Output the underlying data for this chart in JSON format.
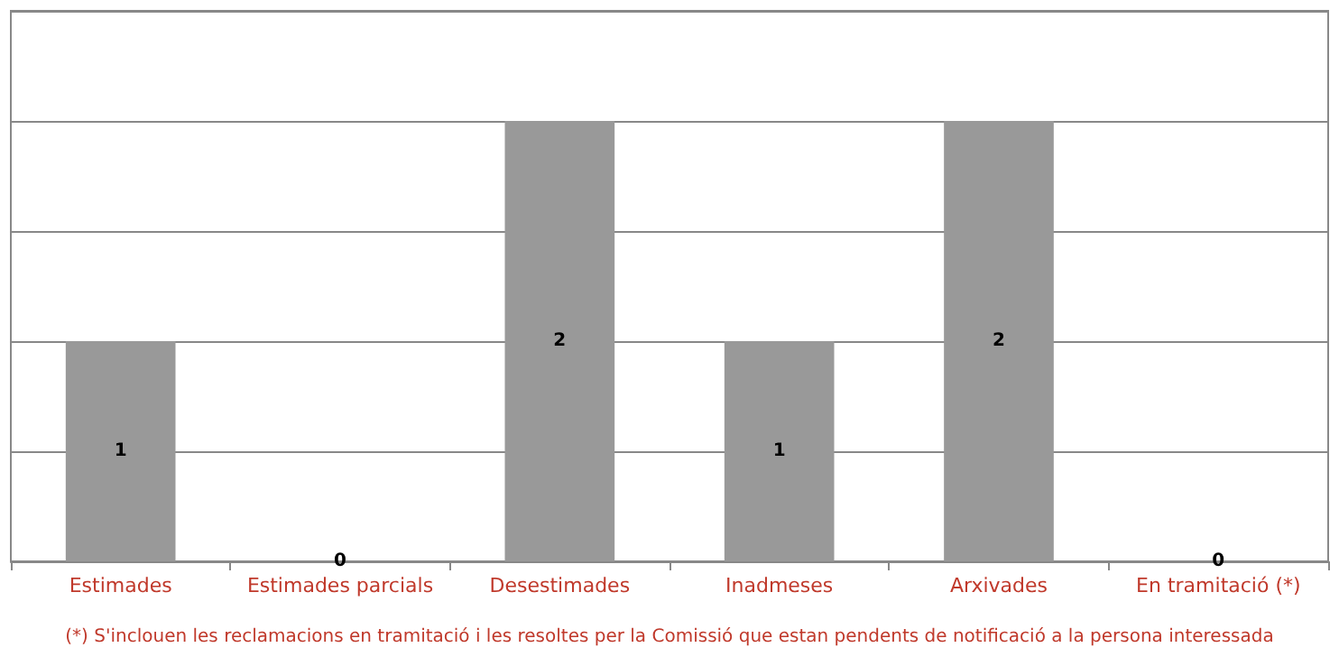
{
  "chart_data": {
    "type": "bar",
    "categories": [
      "Estimades",
      "Estimades parcials",
      "Desestimades",
      "Inadmeses",
      "Arxivades",
      "En tramitació (*)"
    ],
    "values": [
      1,
      0,
      2,
      1,
      2,
      0
    ],
    "color": "#999999",
    "ylim": [
      0,
      2.5
    ],
    "yticks": [
      {
        "value": 0,
        "label": null
      },
      {
        "value": 0.5,
        "label": null
      },
      {
        "value": 1,
        "label": null
      },
      {
        "value": 1.5,
        "label": null
      },
      {
        "value": 2,
        "label": null
      },
      {
        "value": 2.5,
        "label": null
      }
    ],
    "tick_labels": "x",
    "grid": "y",
    "data_labels": true,
    "annotations": [
      "(*) S'inclouen les reclamacions en tramitació i les resoltes per la Comissió que estan pendents de notificació a la persona interessada"
    ]
  }
}
